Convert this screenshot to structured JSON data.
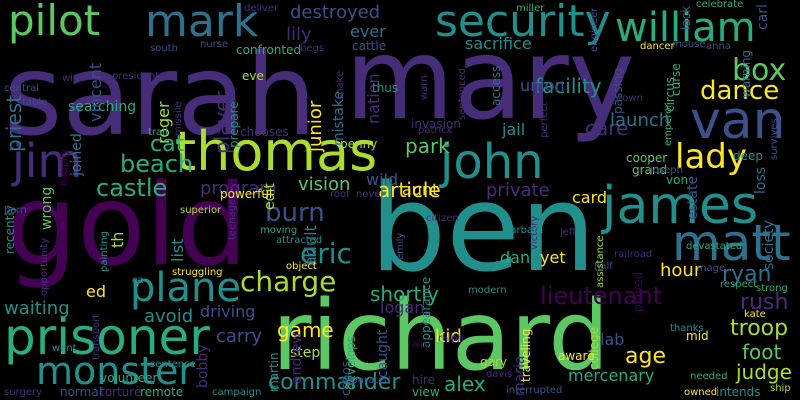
{
  "palette": {
    "background": "#000000",
    "dark_purple": "#440154",
    "purple": "#472c7a",
    "indigo": "#3b518b",
    "blue": "#2c718e",
    "teal": "#21908d",
    "green_teal": "#27ad81",
    "green": "#5cc863",
    "yellow_green": "#aadc32",
    "yellow": "#fde725"
  },
  "words": [
    {
      "text": "sarah",
      "color": "purple"
    },
    {
      "text": "mary",
      "color": "purple"
    },
    {
      "text": "ben",
      "color": "teal"
    },
    {
      "text": "gold",
      "color": "dark_purple"
    },
    {
      "text": "richard",
      "color": "green"
    },
    {
      "text": "john",
      "color": "teal"
    },
    {
      "text": "thomas",
      "color": "yellow_green"
    },
    {
      "text": "james",
      "color": "teal"
    },
    {
      "text": "matt",
      "color": "blue"
    },
    {
      "text": "security",
      "color": "teal"
    },
    {
      "text": "william",
      "color": "green_teal"
    },
    {
      "text": "mark",
      "color": "blue"
    },
    {
      "text": "pilot",
      "color": "green"
    },
    {
      "text": "jim",
      "color": "purple"
    },
    {
      "text": "prisoner",
      "color": "green_teal"
    },
    {
      "text": "plane",
      "color": "teal"
    },
    {
      "text": "monster",
      "color": "teal"
    },
    {
      "text": "lady",
      "color": "yellow"
    },
    {
      "text": "van",
      "color": "indigo"
    },
    {
      "text": "box",
      "color": "green"
    },
    {
      "text": "dance",
      "color": "yellow"
    },
    {
      "text": "castle",
      "color": "green_teal"
    },
    {
      "text": "beach",
      "color": "green_teal"
    },
    {
      "text": "cat",
      "color": "green_teal"
    },
    {
      "text": "charge",
      "color": "yellow_green"
    },
    {
      "text": "burn",
      "color": "indigo"
    },
    {
      "text": "eric",
      "color": "teal"
    },
    {
      "text": "lieutenant",
      "color": "dark_purple"
    },
    {
      "text": "commander",
      "color": "teal"
    },
    {
      "text": "alex",
      "color": "green_teal"
    },
    {
      "text": "game",
      "color": "yellow"
    },
    {
      "text": "shortly",
      "color": "green_teal"
    },
    {
      "text": "rush",
      "color": "purple"
    },
    {
      "text": "troop",
      "color": "yellow_green"
    },
    {
      "text": "judge",
      "color": "yellow_green"
    },
    {
      "text": "foot",
      "color": "green"
    },
    {
      "text": "age",
      "color": "yellow"
    },
    {
      "text": "mercenary",
      "color": "green_teal"
    },
    {
      "text": "article",
      "color": "yellow"
    },
    {
      "text": "vision",
      "color": "green"
    },
    {
      "text": "park",
      "color": "green"
    },
    {
      "text": "care",
      "color": "purple"
    },
    {
      "text": "facility",
      "color": "teal"
    },
    {
      "text": "destroyed",
      "color": "indigo"
    },
    {
      "text": "sacrifice",
      "color": "teal"
    },
    {
      "text": "ever",
      "color": "blue"
    },
    {
      "text": "lily",
      "color": "purple"
    },
    {
      "text": "program",
      "color": "purple"
    },
    {
      "text": "carry",
      "color": "indigo"
    },
    {
      "text": "avoid",
      "color": "teal"
    },
    {
      "text": "driving",
      "color": "indigo"
    },
    {
      "text": "waiting",
      "color": "teal"
    },
    {
      "text": "ed",
      "color": "yellow"
    },
    {
      "text": "ryan",
      "color": "blue"
    },
    {
      "text": "hour",
      "color": "yellow"
    },
    {
      "text": "private",
      "color": "purple"
    },
    {
      "text": "card",
      "color": "yellow"
    },
    {
      "text": "launch",
      "color": "blue"
    },
    {
      "text": "union",
      "color": "indigo"
    },
    {
      "text": "jail",
      "color": "teal"
    },
    {
      "text": "wild",
      "color": "indigo"
    },
    {
      "text": "aunt",
      "color": "yellow"
    },
    {
      "text": "kid",
      "color": "yellow"
    },
    {
      "text": "lab",
      "color": "indigo"
    },
    {
      "text": "step",
      "color": "yellow_green"
    },
    {
      "text": "logan",
      "color": "purple"
    },
    {
      "text": "dan",
      "color": "green_teal"
    },
    {
      "text": "yet",
      "color": "yellow"
    },
    {
      "text": "searching",
      "color": "green_teal"
    },
    {
      "text": "priest",
      "color": "blue"
    },
    {
      "text": "vincent",
      "color": "indigo"
    },
    {
      "text": "roger",
      "color": "yellow_green"
    },
    {
      "text": "junior",
      "color": "yellow"
    },
    {
      "text": "player",
      "color": "purple"
    },
    {
      "text": "joined",
      "color": "blue"
    },
    {
      "text": "wrong",
      "color": "green"
    },
    {
      "text": "edit",
      "color": "yellow_green"
    },
    {
      "text": "list",
      "color": "teal"
    },
    {
      "text": "th",
      "color": "yellow_green"
    },
    {
      "text": "adult",
      "color": "blue"
    },
    {
      "text": "mistake",
      "color": "blue"
    },
    {
      "text": "nation",
      "color": "purple"
    },
    {
      "text": "estate",
      "color": "indigo"
    },
    {
      "text": "loss",
      "color": "blue"
    },
    {
      "text": "society",
      "color": "blue"
    },
    {
      "text": "carl",
      "color": "indigo"
    },
    {
      "text": "warning",
      "color": "blue"
    },
    {
      "text": "lack",
      "color": "indigo"
    },
    {
      "text": "curse",
      "color": "green_teal"
    },
    {
      "text": "circus",
      "color": "green_teal"
    },
    {
      "text": "passing",
      "color": "indigo"
    },
    {
      "text": "access",
      "color": "blue"
    },
    {
      "text": "andrew",
      "color": "purple"
    },
    {
      "text": "caught",
      "color": "indigo"
    },
    {
      "text": "maria",
      "color": "purple"
    },
    {
      "text": "bobby",
      "color": "purple"
    },
    {
      "text": "martin",
      "color": "teal"
    },
    {
      "text": "chaos",
      "color": "indigo"
    },
    {
      "text": "develops",
      "color": "green_teal"
    },
    {
      "text": "volunteer",
      "color": "green_teal"
    },
    {
      "text": "normal",
      "color": "indigo"
    },
    {
      "text": "torture",
      "color": "purple"
    },
    {
      "text": "remote",
      "color": "green_teal"
    },
    {
      "text": "college",
      "color": "yellow_green"
    },
    {
      "text": "played",
      "color": "dark_purple"
    },
    {
      "text": "cooper",
      "color": "green"
    },
    {
      "text": "grand",
      "color": "green"
    },
    {
      "text": "von",
      "color": "green_teal"
    },
    {
      "text": "deep",
      "color": "teal"
    },
    {
      "text": "survives",
      "color": "indigo"
    },
    {
      "text": "kate",
      "color": "yellow"
    },
    {
      "text": "mid",
      "color": "yellow"
    },
    {
      "text": "thanks",
      "color": "teal"
    },
    {
      "text": "image",
      "color": "indigo"
    },
    {
      "text": "respect",
      "color": "green_teal"
    },
    {
      "text": "railroad",
      "color": "purple"
    },
    {
      "text": "emperor",
      "color": "green_teal"
    },
    {
      "text": "brown",
      "color": "purple"
    },
    {
      "text": "invasion",
      "color": "purple"
    },
    {
      "text": "sentenced",
      "color": "purple"
    },
    {
      "text": "warn",
      "color": "purple"
    },
    {
      "text": "thus",
      "color": "teal"
    },
    {
      "text": "penny",
      "color": "yellow_green"
    },
    {
      "text": "chooses",
      "color": "purple"
    },
    {
      "text": "prepare",
      "color": "teal"
    },
    {
      "text": "missile",
      "color": "purple"
    },
    {
      "text": "eve",
      "color": "yellow_green"
    },
    {
      "text": "trail",
      "color": "green_teal"
    },
    {
      "text": "table",
      "color": "indigo"
    },
    {
      "text": "wind",
      "color": "purple"
    },
    {
      "text": "central",
      "color": "indigo"
    },
    {
      "text": "happily",
      "color": "dark_purple"
    },
    {
      "text": "recently",
      "color": "teal"
    },
    {
      "text": "went",
      "color": "teal"
    },
    {
      "text": "surgery",
      "color": "purple"
    },
    {
      "text": "transport",
      "color": "purple"
    },
    {
      "text": "painting",
      "color": "teal"
    },
    {
      "text": "struggling",
      "color": "yellow"
    },
    {
      "text": "superior",
      "color": "yellow_green"
    },
    {
      "text": "powerful",
      "color": "yellow"
    },
    {
      "text": "teenage",
      "color": "purple"
    },
    {
      "text": "moving",
      "color": "green_teal"
    },
    {
      "text": "attracted",
      "color": "teal"
    },
    {
      "text": "object",
      "color": "yellow"
    },
    {
      "text": "roof",
      "color": "purple"
    },
    {
      "text": "novel",
      "color": "purple"
    },
    {
      "text": "citizen",
      "color": "purple"
    },
    {
      "text": "emily",
      "color": "indigo"
    },
    {
      "text": "victory",
      "color": "purple"
    },
    {
      "text": "jeff",
      "color": "purple"
    },
    {
      "text": "barbara",
      "color": "teal"
    },
    {
      "text": "assistance",
      "color": "yellow_green"
    },
    {
      "text": "devastated",
      "color": "green_teal"
    },
    {
      "text": "perfect",
      "color": "purple"
    },
    {
      "text": "patrick",
      "color": "purple"
    },
    {
      "text": "joseph",
      "color": "indigo"
    },
    {
      "text": "confronted",
      "color": "green_teal"
    },
    {
      "text": "cattle",
      "color": "indigo"
    },
    {
      "text": "miller",
      "color": "green_teal"
    },
    {
      "text": "engineer",
      "color": "indigo"
    },
    {
      "text": "deliver",
      "color": "purple"
    },
    {
      "text": "celebrate",
      "color": "green_teal"
    },
    {
      "text": "mouse",
      "color": "indigo"
    },
    {
      "text": "anna",
      "color": "indigo"
    },
    {
      "text": "dancer",
      "color": "yellow"
    },
    {
      "text": "nurse",
      "color": "indigo"
    },
    {
      "text": "south",
      "color": "indigo"
    },
    {
      "text": "president",
      "color": "purple"
    },
    {
      "text": "snake",
      "color": "purple"
    },
    {
      "text": "begs",
      "color": "purple"
    },
    {
      "text": "ca",
      "color": "teal"
    },
    {
      "text": "barn",
      "color": "indigo"
    },
    {
      "text": "opportunity",
      "color": "purple"
    },
    {
      "text": "ralph",
      "color": "purple"
    },
    {
      "text": "traveling",
      "color": "yellow"
    },
    {
      "text": "davis",
      "color": "purple"
    },
    {
      "text": "gary",
      "color": "yellow_green"
    },
    {
      "text": "aware",
      "color": "yellow"
    },
    {
      "text": "interrupted",
      "color": "indigo"
    },
    {
      "text": "needed",
      "color": "green_teal"
    },
    {
      "text": "intends",
      "color": "teal"
    },
    {
      "text": "strong",
      "color": "green_teal"
    },
    {
      "text": "ship",
      "color": "yellow_green"
    },
    {
      "text": "owned",
      "color": "yellow"
    },
    {
      "text": "hire",
      "color": "purple"
    },
    {
      "text": "view",
      "color": "green_teal"
    },
    {
      "text": "separated",
      "color": "indigo"
    },
    {
      "text": "appearance",
      "color": "teal"
    },
    {
      "text": "modern",
      "color": "teal"
    },
    {
      "text": "campaign",
      "color": "teal"
    },
    {
      "text": "sentence",
      "color": "teal"
    },
    {
      "text": "fairy",
      "color": "dark_purple"
    },
    {
      "text": "half",
      "color": "indigo"
    }
  ]
}
